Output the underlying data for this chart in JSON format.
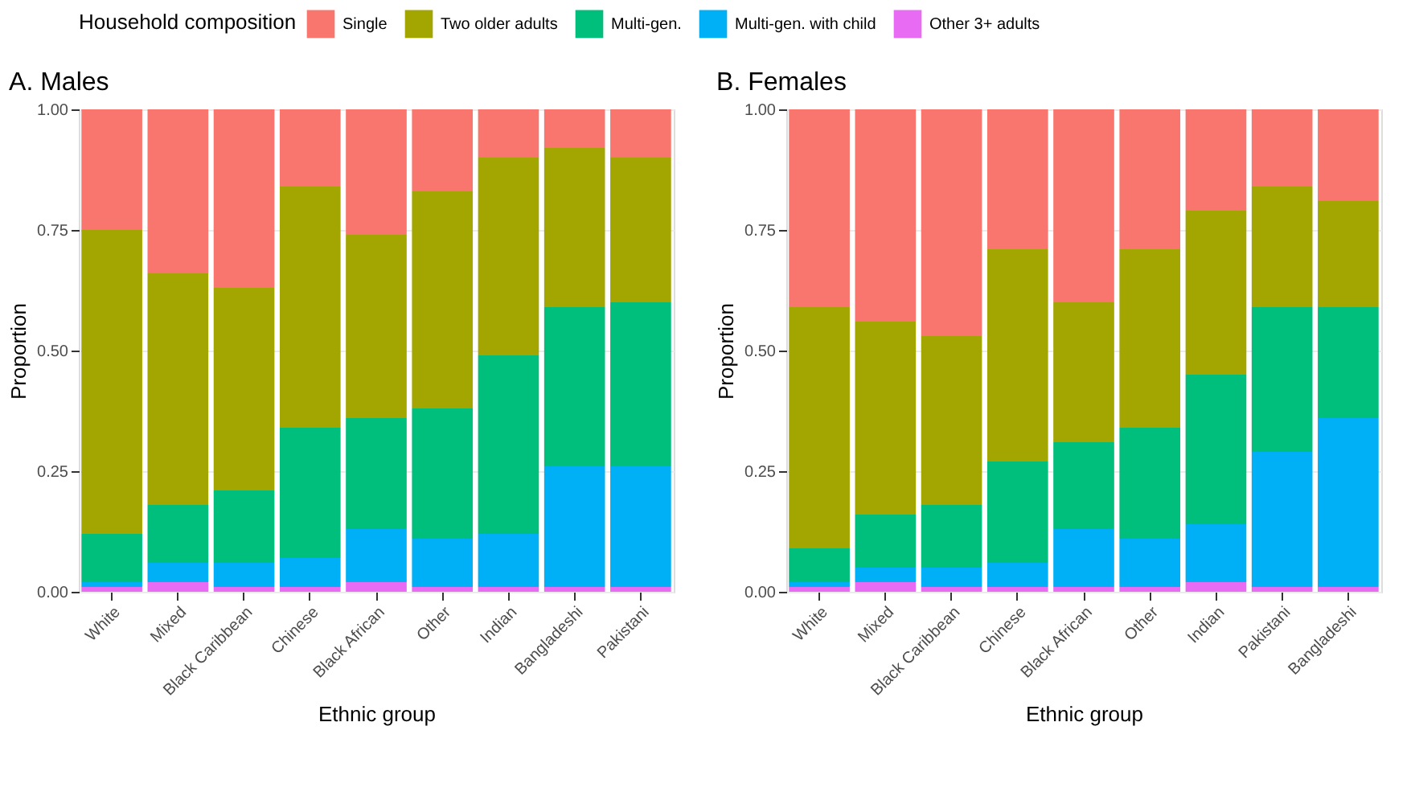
{
  "chart_data": [
    {
      "type": "bar",
      "title": "A. Males",
      "xlabel": "Ethnic group",
      "ylabel": "Proportion",
      "legend_title": "Household composition",
      "legend": "top",
      "stacked": true,
      "grid": true,
      "categories": [
        "White",
        "Mixed",
        "Black Caribbean",
        "Chinese",
        "Black African",
        "Other",
        "Indian",
        "Bangladeshi",
        "Pakistani"
      ],
      "ylim": [
        0,
        1
      ],
      "yticks": [
        {
          "value": 0,
          "label": "0.00"
        },
        {
          "value": 0.25,
          "label": "0.25"
        },
        {
          "value": 0.5,
          "label": "0.50"
        },
        {
          "value": 0.75,
          "label": "0.75"
        },
        {
          "value": 1,
          "label": "1.00"
        }
      ],
      "series": [
        {
          "name": "Other 3+ adults",
          "color": "#e76bf3",
          "values": [
            0.01,
            0.02,
            0.01,
            0.01,
            0.02,
            0.01,
            0.01,
            0.01,
            0.01
          ]
        },
        {
          "name": "Multi-gen. with child",
          "color": "#00b0f6",
          "values": [
            0.01,
            0.04,
            0.05,
            0.06,
            0.11,
            0.1,
            0.11,
            0.25,
            0.25
          ]
        },
        {
          "name": "Multi-gen.",
          "color": "#00bf7d",
          "values": [
            0.1,
            0.12,
            0.15,
            0.27,
            0.23,
            0.27,
            0.37,
            0.33,
            0.34
          ]
        },
        {
          "name": "Two older adults",
          "color": "#a3a500",
          "values": [
            0.63,
            0.48,
            0.42,
            0.5,
            0.38,
            0.45,
            0.41,
            0.33,
            0.3
          ]
        },
        {
          "name": "Single",
          "color": "#f8766d",
          "values": [
            0.25,
            0.34,
            0.37,
            0.16,
            0.26,
            0.17,
            0.1,
            0.08,
            0.1
          ]
        }
      ]
    },
    {
      "type": "bar",
      "title": "B. Females",
      "xlabel": "Ethnic group",
      "ylabel": "Proportion",
      "legend": "top",
      "stacked": true,
      "grid": true,
      "categories": [
        "White",
        "Mixed",
        "Black Caribbean",
        "Chinese",
        "Black African",
        "Other",
        "Indian",
        "Pakistani",
        "Bangladeshi"
      ],
      "ylim": [
        0,
        1
      ],
      "yticks": [
        {
          "value": 0,
          "label": "0.00"
        },
        {
          "value": 0.25,
          "label": "0.25"
        },
        {
          "value": 0.5,
          "label": "0.50"
        },
        {
          "value": 0.75,
          "label": "0.75"
        },
        {
          "value": 1,
          "label": "1.00"
        }
      ],
      "series": [
        {
          "name": "Other 3+ adults",
          "color": "#e76bf3",
          "values": [
            0.01,
            0.02,
            0.01,
            0.01,
            0.01,
            0.01,
            0.02,
            0.01,
            0.01
          ]
        },
        {
          "name": "Multi-gen. with child",
          "color": "#00b0f6",
          "values": [
            0.01,
            0.03,
            0.04,
            0.05,
            0.12,
            0.1,
            0.12,
            0.28,
            0.35
          ]
        },
        {
          "name": "Multi-gen.",
          "color": "#00bf7d",
          "values": [
            0.07,
            0.11,
            0.13,
            0.21,
            0.18,
            0.23,
            0.31,
            0.3,
            0.23
          ]
        },
        {
          "name": "Two older adults",
          "color": "#a3a500",
          "values": [
            0.5,
            0.4,
            0.35,
            0.44,
            0.29,
            0.37,
            0.34,
            0.25,
            0.22
          ]
        },
        {
          "name": "Single",
          "color": "#f8766d",
          "values": [
            0.41,
            0.44,
            0.47,
            0.29,
            0.4,
            0.29,
            0.21,
            0.16,
            0.19
          ]
        }
      ]
    }
  ]
}
